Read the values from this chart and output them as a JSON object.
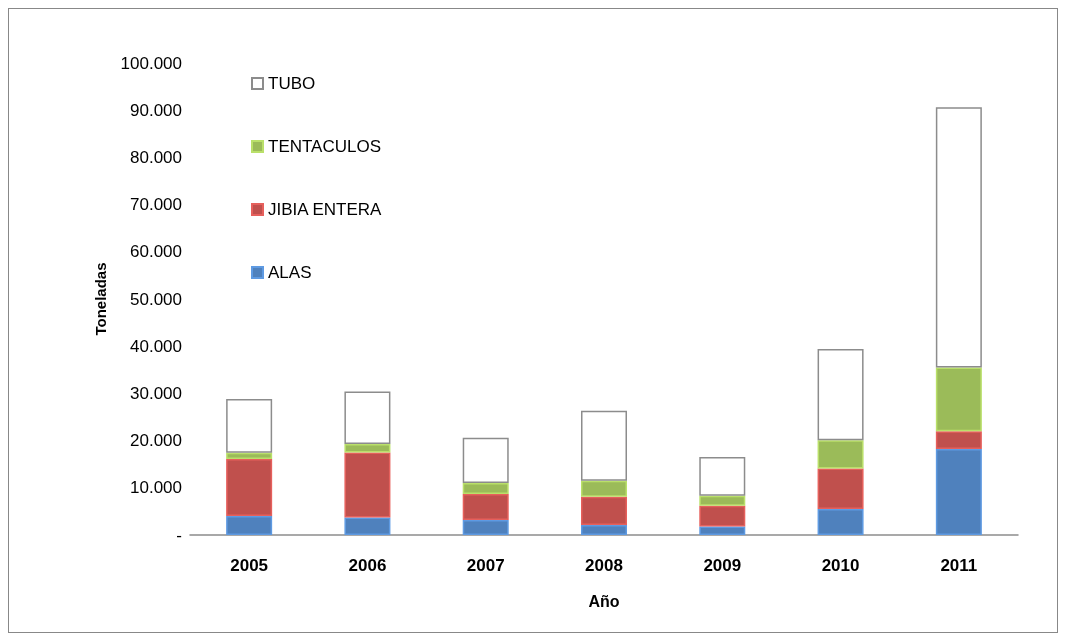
{
  "chart_data": {
    "type": "bar",
    "stacked": true,
    "xlabel": "Año",
    "ylabel": "Toneladas",
    "categories": [
      "2005",
      "2006",
      "2007",
      "2008",
      "2009",
      "2010",
      "2011"
    ],
    "series": [
      {
        "name": "ALAS",
        "color": "#4f81bd",
        "values": [
          4000,
          3700,
          3200,
          2100,
          1800,
          5500,
          18200
        ]
      },
      {
        "name": "JIBIA ENTERA",
        "color": "#c0504d",
        "values": [
          12100,
          13800,
          5500,
          6000,
          4400,
          8600,
          3800
        ]
      },
      {
        "name": "TENTACULOS",
        "color": "#9bbb59",
        "values": [
          1300,
          1800,
          2300,
          3400,
          2100,
          6000,
          13500
        ]
      },
      {
        "name": "TUBO",
        "color": "#ffffff",
        "values": [
          11400,
          11100,
          9600,
          14800,
          8200,
          19300,
          55100
        ]
      }
    ],
    "ylim": [
      0,
      100000
    ],
    "yticks": [
      {
        "value": 0,
        "label": "-"
      },
      {
        "value": 10000,
        "label": "10.000"
      },
      {
        "value": 20000,
        "label": "20.000"
      },
      {
        "value": 30000,
        "label": "30.000"
      },
      {
        "value": 40000,
        "label": "40.000"
      },
      {
        "value": 50000,
        "label": "50.000"
      },
      {
        "value": 60000,
        "label": "60.000"
      },
      {
        "value": 70000,
        "label": "70.000"
      },
      {
        "value": 80000,
        "label": "80.000"
      },
      {
        "value": 90000,
        "label": "90.000"
      },
      {
        "value": 100000,
        "label": "100.000"
      }
    ],
    "grid": false,
    "legend": "top left"
  }
}
